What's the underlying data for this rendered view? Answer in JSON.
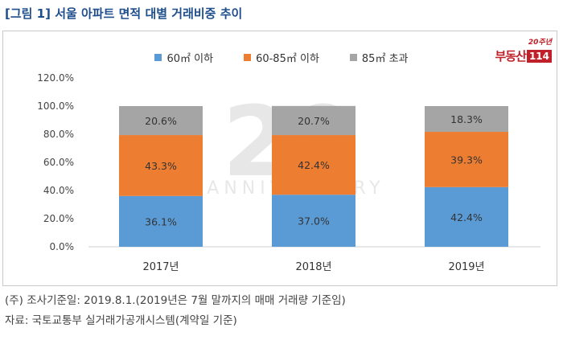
{
  "title": "[그림 1] 서울 아파트 면적 대별 거래비중 추이",
  "logo": {
    "top": "20주년",
    "main": "부동산",
    "num": "114"
  },
  "watermark": {
    "line1": "20",
    "line2": "ANNIVERSARY"
  },
  "colors": {
    "small": "#5b9bd5",
    "medium": "#ed7d31",
    "large": "#a5a5a5"
  },
  "chart_data": {
    "type": "bar",
    "stacked": true,
    "categories": [
      "2017년",
      "2018년",
      "2019년"
    ],
    "series": [
      {
        "name": "60㎡ 이하",
        "values": [
          36.1,
          37.0,
          42.4
        ],
        "labels": [
          "36.1%",
          "37.0%",
          "42.4%"
        ]
      },
      {
        "name": "60-85㎡ 이하",
        "values": [
          43.3,
          42.4,
          39.3
        ],
        "labels": [
          "43.3%",
          "42.4%",
          "39.3%"
        ]
      },
      {
        "name": "85㎡ 초과",
        "values": [
          20.6,
          20.7,
          18.3
        ],
        "labels": [
          "20.6%",
          "20.7%",
          "18.3%"
        ]
      }
    ],
    "yticks": [
      "0.0%",
      "20.0%",
      "40.0%",
      "60.0%",
      "80.0%",
      "100.0%",
      "120.0%"
    ],
    "ylim": [
      0,
      120
    ],
    "legend_position": "top"
  },
  "notes": [
    "(주) 조사기준일: 2019.8.1.(2019년은 7월 말까지의 매매 거래량 기준임)",
    "자료: 국토교통부 실거래가공개시스템(계약일 기준)"
  ]
}
